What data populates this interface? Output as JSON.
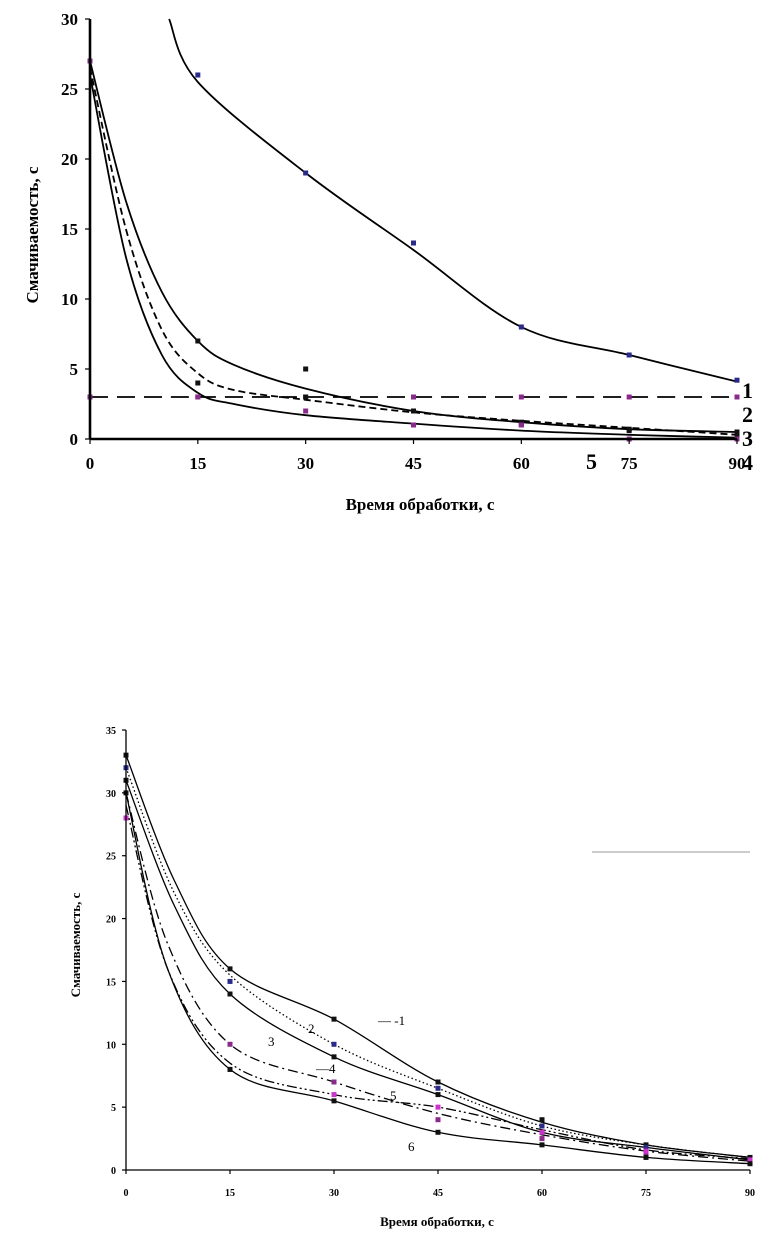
{
  "chart_data": [
    {
      "type": "line",
      "title": "",
      "xlabel": "Время обработки, с",
      "ylabel": "Смачиваемость, с",
      "xlim": [
        0,
        90
      ],
      "ylim": [
        0,
        30
      ],
      "x_ticks": [
        "0",
        "15",
        "30",
        "45",
        "60",
        "75",
        "90"
      ],
      "y_ticks": [
        "0",
        "5",
        "10",
        "15",
        "20",
        "25",
        "30"
      ],
      "grid": false,
      "legend": "curve labels at right end",
      "series": [
        {
          "name": "1",
          "label_text": "1",
          "style": "solid",
          "curve": [
            [
              11,
              30
            ],
            [
              15,
              25.5
            ],
            [
              30,
              19
            ],
            [
              45,
              13.5
            ],
            [
              60,
              8
            ],
            [
              75,
              6
            ],
            [
              90,
              4.1
            ]
          ],
          "points": [
            [
              15,
              26
            ],
            [
              30,
              19
            ],
            [
              45,
              14
            ],
            [
              60,
              8
            ],
            [
              75,
              6
            ],
            [
              90,
              4.2
            ]
          ]
        },
        {
          "name": "2",
          "label_text": "2",
          "style": "longdash",
          "curve": [
            [
              0,
              3
            ],
            [
              90,
              3
            ]
          ],
          "points": [
            [
              0,
              3
            ],
            [
              15,
              3
            ],
            [
              30,
              3
            ],
            [
              45,
              3
            ],
            [
              60,
              3
            ],
            [
              75,
              3
            ],
            [
              90,
              3
            ]
          ]
        },
        {
          "name": "3",
          "label_text": "3",
          "style": "solid",
          "curve": [
            [
              0,
              27
            ],
            [
              5,
              17
            ],
            [
              10,
              10.5
            ],
            [
              15,
              7
            ],
            [
              20,
              5.3
            ],
            [
              30,
              3.6
            ],
            [
              45,
              2
            ],
            [
              60,
              1.2
            ],
            [
              75,
              0.7
            ],
            [
              90,
              0.5
            ]
          ],
          "points": [
            [
              15,
              7
            ],
            [
              30,
              5
            ],
            [
              45,
              2
            ],
            [
              60,
              1
            ],
            [
              75,
              0.7
            ],
            [
              90,
              0.5
            ]
          ]
        },
        {
          "name": "4",
          "label_text": "4",
          "style": "dashed",
          "curve": [
            [
              0,
              26.5
            ],
            [
              5,
              15
            ],
            [
              10,
              7.8
            ],
            [
              15,
              4.7
            ],
            [
              20,
              3.5
            ],
            [
              30,
              2.8
            ],
            [
              45,
              1.9
            ],
            [
              60,
              1.3
            ],
            [
              75,
              0.8
            ],
            [
              90,
              0.3
            ]
          ],
          "points": [
            [
              15,
              4
            ],
            [
              30,
              3
            ],
            [
              45,
              2
            ],
            [
              60,
              1.2
            ],
            [
              75,
              0.6
            ],
            [
              90,
              0.2
            ]
          ]
        },
        {
          "name": "5",
          "label_text": "5",
          "style": "solid",
          "curve": [
            [
              0,
              26
            ],
            [
              5,
              13
            ],
            [
              10,
              6
            ],
            [
              15,
              3.3
            ],
            [
              20,
              2.5
            ],
            [
              30,
              1.7
            ],
            [
              45,
              1.1
            ],
            [
              60,
              0.6
            ],
            [
              75,
              0.3
            ],
            [
              90,
              0.1
            ]
          ],
          "points": [
            [
              0,
              27
            ],
            [
              15,
              3
            ],
            [
              30,
              2
            ],
            [
              45,
              1
            ],
            [
              60,
              1
            ],
            [
              75,
              0
            ],
            [
              90,
              0
            ]
          ]
        }
      ]
    },
    {
      "type": "line",
      "title": "",
      "xlabel": "Время обработки, с",
      "ylabel": "Смачиваемость, с",
      "xlim": [
        0,
        90
      ],
      "ylim": [
        0,
        35
      ],
      "x_ticks": [
        "0",
        "15",
        "30",
        "45",
        "60",
        "75",
        "90"
      ],
      "y_ticks": [
        "0",
        "5",
        "10",
        "15",
        "20",
        "25",
        "30",
        "35"
      ],
      "grid": false,
      "legend": "curve labels inside plot",
      "series": [
        {
          "name": "1",
          "label_text": "— -1",
          "style": "solid",
          "curve": [
            [
              0,
              33
            ],
            [
              7,
              23
            ],
            [
              15,
              16
            ],
            [
              30,
              12
            ],
            [
              45,
              7
            ],
            [
              60,
              3.8
            ],
            [
              75,
              2
            ],
            [
              90,
              1
            ]
          ],
          "points": [
            [
              0,
              33
            ],
            [
              15,
              16
            ],
            [
              30,
              12
            ],
            [
              45,
              7
            ],
            [
              60,
              4
            ],
            [
              75,
              2
            ],
            [
              90,
              1
            ]
          ]
        },
        {
          "name": "2",
          "label_text": "2",
          "style": "dotted",
          "curve": [
            [
              0,
              32
            ],
            [
              7,
              22
            ],
            [
              15,
              15.5
            ],
            [
              30,
              10
            ],
            [
              45,
              6.5
            ],
            [
              60,
              3.5
            ],
            [
              75,
              2
            ],
            [
              90,
              1
            ]
          ],
          "points": [
            [
              0,
              32
            ],
            [
              15,
              15
            ],
            [
              30,
              10
            ],
            [
              45,
              6.5
            ],
            [
              60,
              3.5
            ],
            [
              75,
              1.8
            ],
            [
              90,
              0.8
            ]
          ]
        },
        {
          "name": "3",
          "label_text": "3",
          "style": "solid",
          "curve": [
            [
              0,
              31
            ],
            [
              7,
              21
            ],
            [
              15,
              14
            ],
            [
              30,
              9
            ],
            [
              45,
              6
            ],
            [
              60,
              3
            ],
            [
              75,
              1.8
            ],
            [
              90,
              0.8
            ]
          ],
          "points": [
            [
              0,
              31
            ],
            [
              15,
              14
            ],
            [
              30,
              9
            ],
            [
              45,
              6
            ],
            [
              60,
              3
            ],
            [
              75,
              1.5
            ],
            [
              90,
              0.8
            ]
          ]
        },
        {
          "name": "4",
          "label_text": "—4",
          "style": "dashdot",
          "curve": [
            [
              0,
              30
            ],
            [
              6,
              18
            ],
            [
              15,
              10
            ],
            [
              30,
              7
            ],
            [
              45,
              4.5
            ],
            [
              60,
              2.8
            ],
            [
              75,
              1.5
            ],
            [
              90,
              0.7
            ]
          ],
          "points": [
            [
              0,
              28
            ],
            [
              15,
              10
            ],
            [
              30,
              7
            ],
            [
              45,
              4
            ],
            [
              60,
              2.5
            ],
            [
              75,
              1.2
            ],
            [
              90,
              0.6
            ]
          ]
        },
        {
          "name": "5",
          "label_text": "5",
          "style": "dashdotdot",
          "curve": [
            [
              0,
              29
            ],
            [
              6,
              16
            ],
            [
              15,
              8.5
            ],
            [
              30,
              6
            ],
            [
              45,
              5
            ],
            [
              60,
              3.2
            ],
            [
              75,
              1.6
            ],
            [
              90,
              0.9
            ]
          ],
          "points": [
            [
              0,
              28
            ],
            [
              15,
              8
            ],
            [
              30,
              6
            ],
            [
              45,
              5
            ],
            [
              60,
              3
            ],
            [
              75,
              1.5
            ],
            [
              90,
              0.8
            ]
          ]
        },
        {
          "name": "6",
          "label_text": "6",
          "style": "solid",
          "curve": [
            [
              0,
              30
            ],
            [
              6,
              16
            ],
            [
              15,
              8
            ],
            [
              30,
              5.5
            ],
            [
              45,
              3
            ],
            [
              60,
              2
            ],
            [
              75,
              1
            ],
            [
              90,
              0.5
            ]
          ],
          "points": [
            [
              0,
              30
            ],
            [
              15,
              8
            ],
            [
              30,
              5.5
            ],
            [
              45,
              3
            ],
            [
              60,
              2
            ],
            [
              75,
              1
            ],
            [
              90,
              0.5
            ]
          ]
        }
      ]
    }
  ]
}
